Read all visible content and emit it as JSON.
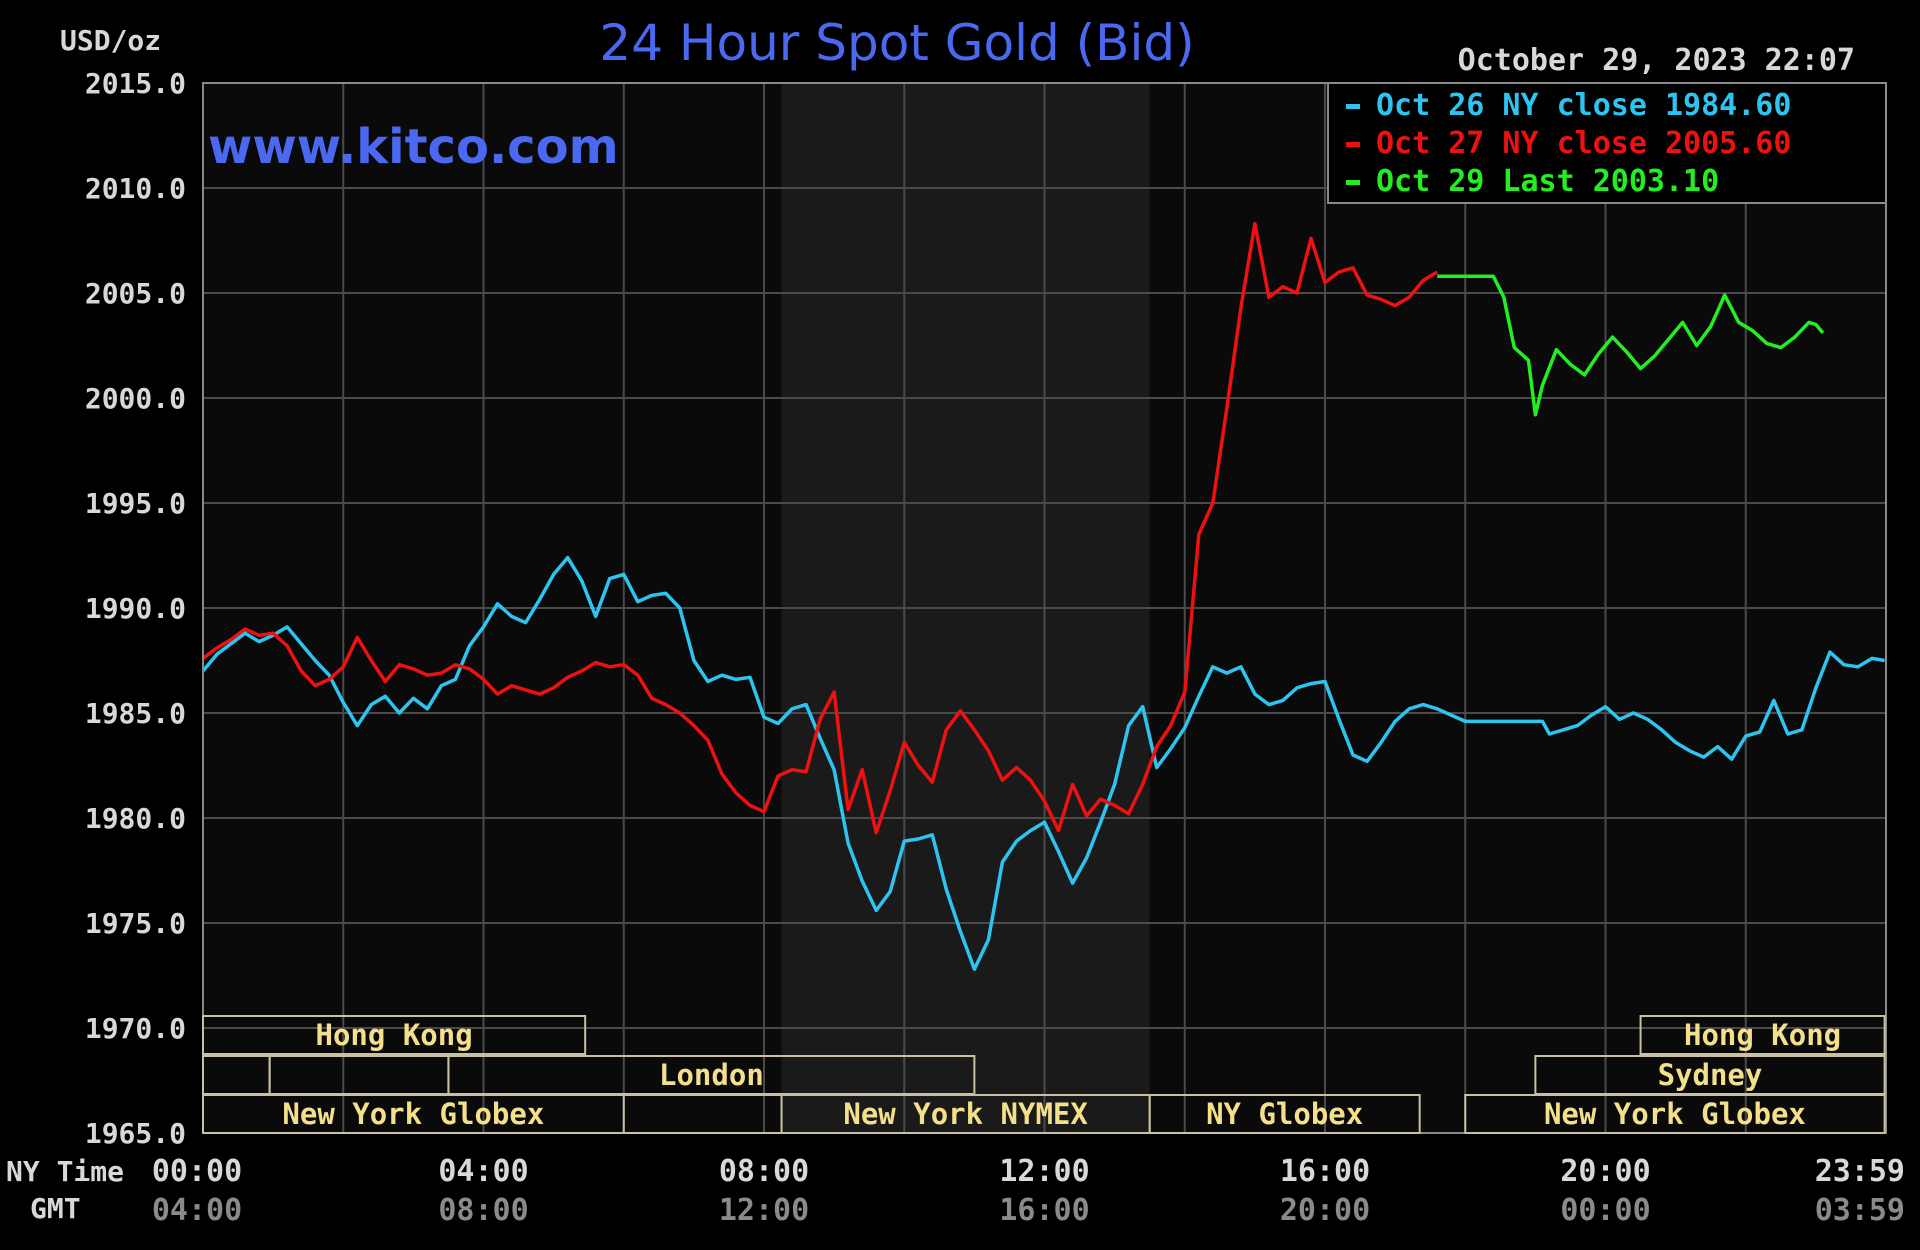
{
  "colors": {
    "background": "#000000",
    "plot_bg": "#0a0a0a",
    "grid": "#4a4a4a",
    "frame": "#8a8a8a",
    "shade": "#1a1a1a",
    "title": "#4a68f0",
    "axis_text": "#d8d8d8",
    "gmt_text": "#8a8a8a",
    "market_text": "#f4e08a",
    "market_border": "#c8c0a0",
    "oct26": "#2ec4f0",
    "oct27": "#ee1111",
    "oct29": "#22ee22"
  },
  "header": {
    "unit_label": "USD/oz",
    "title": "24 Hour Spot Gold (Bid)",
    "datetime": "October 29, 2023 22:07",
    "watermark": "www.kitco.com"
  },
  "legend": [
    {
      "text": "Oct 26 NY close 1984.60",
      "color": "#2ec4f0"
    },
    {
      "text": "Oct 27 NY close 2005.60",
      "color": "#ee1111"
    },
    {
      "text": "Oct 29 Last 2003.10",
      "color": "#22ee22"
    }
  ],
  "axis": {
    "ny_time_label": "NY Time",
    "gmt_label": "GMT",
    "x_ticks": [
      {
        "ny": "00:00",
        "gmt": "04:00",
        "h": 0
      },
      {
        "ny": "04:00",
        "gmt": "08:00",
        "h": 4
      },
      {
        "ny": "08:00",
        "gmt": "12:00",
        "h": 8
      },
      {
        "ny": "12:00",
        "gmt": "16:00",
        "h": 12
      },
      {
        "ny": "16:00",
        "gmt": "20:00",
        "h": 16
      },
      {
        "ny": "20:00",
        "gmt": "00:00",
        "h": 20
      },
      {
        "ny": "23:59",
        "gmt": "03:59",
        "h": 23.98
      }
    ],
    "y_ticks": [
      "2015.0",
      "2010.0",
      "2005.0",
      "2000.0",
      "1995.0",
      "1990.0",
      "1985.0",
      "1980.0",
      "1975.0",
      "1970.0",
      "1965.0"
    ]
  },
  "markets": [
    {
      "label": "Hong Kong",
      "row": 0,
      "start": 0,
      "end": 5.45
    },
    {
      "label": "",
      "row": 1,
      "start": 0,
      "end": 0.95
    },
    {
      "label": "",
      "row": 1,
      "start": 0.95,
      "end": 3.5
    },
    {
      "label": "London",
      "row": 1,
      "start": 3.5,
      "end": 11.0
    },
    {
      "label": "",
      "row": 2,
      "start": 0,
      "end": 8.25
    },
    {
      "label": "New York Globex",
      "row": 2,
      "start": 0,
      "end": 6.0
    },
    {
      "label": "New York NYMEX",
      "row": 2,
      "start": 8.25,
      "end": 13.5
    },
    {
      "label": "NY Globex",
      "row": 2,
      "start": 13.5,
      "end": 17.35
    },
    {
      "label": "Hong Kong",
      "row": 0,
      "start": 20.5,
      "end": 23.98
    },
    {
      "label": "Sydney",
      "row": 1,
      "start": 19.0,
      "end": 23.98
    },
    {
      "label": "New York Globex",
      "row": 2,
      "start": 18.0,
      "end": 23.98
    }
  ],
  "chart_data": {
    "type": "line",
    "title": "24 Hour Spot Gold (Bid)",
    "ylabel": "USD/oz",
    "xlabel": "NY Time",
    "xlim": [
      0,
      24
    ],
    "ylim": [
      1965,
      2015
    ],
    "grid": true,
    "legend_position": "top-right",
    "shaded_session_hours": [
      8.25,
      13.5
    ],
    "series": [
      {
        "name": "Oct 26 NY close 1984.60",
        "color": "#2ec4f0",
        "points": [
          [
            0,
            1987.0
          ],
          [
            0.2,
            1987.8
          ],
          [
            0.4,
            1988.3
          ],
          [
            0.6,
            1988.8
          ],
          [
            0.8,
            1988.4
          ],
          [
            1.0,
            1988.7
          ],
          [
            1.2,
            1989.1
          ],
          [
            1.4,
            1988.3
          ],
          [
            1.6,
            1987.5
          ],
          [
            1.8,
            1986.8
          ],
          [
            2.0,
            1985.5
          ],
          [
            2.2,
            1984.4
          ],
          [
            2.4,
            1985.4
          ],
          [
            2.6,
            1985.8
          ],
          [
            2.8,
            1985.0
          ],
          [
            3.0,
            1985.7
          ],
          [
            3.2,
            1985.2
          ],
          [
            3.4,
            1986.3
          ],
          [
            3.6,
            1986.6
          ],
          [
            3.8,
            1988.2
          ],
          [
            4.0,
            1989.1
          ],
          [
            4.2,
            1990.2
          ],
          [
            4.4,
            1989.6
          ],
          [
            4.6,
            1989.3
          ],
          [
            4.8,
            1990.4
          ],
          [
            5.0,
            1991.6
          ],
          [
            5.2,
            1992.4
          ],
          [
            5.4,
            1991.3
          ],
          [
            5.6,
            1989.6
          ],
          [
            5.8,
            1991.4
          ],
          [
            6.0,
            1991.6
          ],
          [
            6.2,
            1990.3
          ],
          [
            6.4,
            1990.6
          ],
          [
            6.6,
            1990.7
          ],
          [
            6.8,
            1990.0
          ],
          [
            7.0,
            1987.5
          ],
          [
            7.2,
            1986.5
          ],
          [
            7.4,
            1986.8
          ],
          [
            7.6,
            1986.6
          ],
          [
            7.8,
            1986.7
          ],
          [
            8.0,
            1984.8
          ],
          [
            8.2,
            1984.5
          ],
          [
            8.4,
            1985.2
          ],
          [
            8.6,
            1985.4
          ],
          [
            8.8,
            1983.8
          ],
          [
            9.0,
            1982.3
          ],
          [
            9.2,
            1978.8
          ],
          [
            9.4,
            1977.0
          ],
          [
            9.6,
            1975.6
          ],
          [
            9.8,
            1976.5
          ],
          [
            10.0,
            1978.9
          ],
          [
            10.2,
            1979.0
          ],
          [
            10.4,
            1979.2
          ],
          [
            10.6,
            1976.6
          ],
          [
            10.8,
            1974.6
          ],
          [
            11.0,
            1972.8
          ],
          [
            11.2,
            1974.2
          ],
          [
            11.4,
            1977.9
          ],
          [
            11.6,
            1978.9
          ],
          [
            11.8,
            1979.4
          ],
          [
            12.0,
            1979.8
          ],
          [
            12.2,
            1978.4
          ],
          [
            12.4,
            1976.9
          ],
          [
            12.6,
            1978.1
          ],
          [
            12.8,
            1979.8
          ],
          [
            13.0,
            1981.6
          ],
          [
            13.2,
            1984.4
          ],
          [
            13.4,
            1985.3
          ],
          [
            13.6,
            1982.4
          ],
          [
            13.8,
            1983.3
          ],
          [
            14.0,
            1984.3
          ],
          [
            14.2,
            1985.8
          ],
          [
            14.4,
            1987.2
          ],
          [
            14.6,
            1986.9
          ],
          [
            14.8,
            1987.2
          ],
          [
            15.0,
            1985.9
          ],
          [
            15.2,
            1985.4
          ],
          [
            15.4,
            1985.6
          ],
          [
            15.6,
            1986.2
          ],
          [
            15.8,
            1986.4
          ],
          [
            16.0,
            1986.5
          ],
          [
            16.2,
            1984.7
          ],
          [
            16.4,
            1983.0
          ],
          [
            16.6,
            1982.7
          ],
          [
            16.8,
            1983.6
          ],
          [
            17.0,
            1984.6
          ],
          [
            17.2,
            1985.2
          ],
          [
            17.4,
            1985.4
          ],
          [
            17.6,
            1985.2
          ],
          [
            17.8,
            1984.9
          ],
          [
            18.0,
            1984.6
          ],
          [
            18.4,
            1984.6
          ],
          [
            18.8,
            1984.6
          ],
          [
            19.0,
            1984.6
          ],
          [
            19.1,
            1984.6
          ],
          [
            19.2,
            1984.0
          ],
          [
            19.4,
            1984.2
          ],
          [
            19.6,
            1984.4
          ],
          [
            19.8,
            1984.9
          ],
          [
            20.0,
            1985.3
          ],
          [
            20.2,
            1984.7
          ],
          [
            20.4,
            1985.0
          ],
          [
            20.6,
            1984.7
          ],
          [
            20.8,
            1984.2
          ],
          [
            21.0,
            1983.6
          ],
          [
            21.2,
            1983.2
          ],
          [
            21.4,
            1982.9
          ],
          [
            21.6,
            1983.4
          ],
          [
            21.8,
            1982.8
          ],
          [
            22.0,
            1983.9
          ],
          [
            22.2,
            1984.1
          ],
          [
            22.4,
            1985.6
          ],
          [
            22.6,
            1984.0
          ],
          [
            22.8,
            1984.2
          ],
          [
            23.0,
            1986.2
          ],
          [
            23.2,
            1987.9
          ],
          [
            23.4,
            1987.3
          ],
          [
            23.6,
            1987.2
          ],
          [
            23.8,
            1987.6
          ],
          [
            23.98,
            1987.5
          ]
        ]
      },
      {
        "name": "Oct 27 NY close 2005.60",
        "color": "#ee1111",
        "points": [
          [
            0,
            1987.6
          ],
          [
            0.2,
            1988.1
          ],
          [
            0.4,
            1988.5
          ],
          [
            0.6,
            1989.0
          ],
          [
            0.8,
            1988.7
          ],
          [
            1.0,
            1988.8
          ],
          [
            1.2,
            1988.2
          ],
          [
            1.4,
            1987.0
          ],
          [
            1.6,
            1986.3
          ],
          [
            1.8,
            1986.6
          ],
          [
            2.0,
            1987.2
          ],
          [
            2.2,
            1988.6
          ],
          [
            2.4,
            1987.5
          ],
          [
            2.6,
            1986.5
          ],
          [
            2.8,
            1987.3
          ],
          [
            3.0,
            1987.1
          ],
          [
            3.2,
            1986.8
          ],
          [
            3.4,
            1986.9
          ],
          [
            3.6,
            1987.3
          ],
          [
            3.8,
            1987.1
          ],
          [
            4.0,
            1986.6
          ],
          [
            4.2,
            1985.9
          ],
          [
            4.4,
            1986.3
          ],
          [
            4.6,
            1986.1
          ],
          [
            4.8,
            1985.9
          ],
          [
            5.0,
            1986.2
          ],
          [
            5.2,
            1986.7
          ],
          [
            5.4,
            1987.0
          ],
          [
            5.6,
            1987.4
          ],
          [
            5.8,
            1987.2
          ],
          [
            6.0,
            1987.3
          ],
          [
            6.2,
            1986.8
          ],
          [
            6.4,
            1985.7
          ],
          [
            6.6,
            1985.4
          ],
          [
            6.8,
            1985.0
          ],
          [
            7.0,
            1984.4
          ],
          [
            7.2,
            1983.7
          ],
          [
            7.4,
            1982.1
          ],
          [
            7.6,
            1981.2
          ],
          [
            7.8,
            1980.6
          ],
          [
            8.0,
            1980.3
          ],
          [
            8.2,
            1982.0
          ],
          [
            8.4,
            1982.3
          ],
          [
            8.6,
            1982.2
          ],
          [
            8.8,
            1984.7
          ],
          [
            9.0,
            1986.0
          ],
          [
            9.2,
            1980.4
          ],
          [
            9.4,
            1982.3
          ],
          [
            9.6,
            1979.3
          ],
          [
            9.8,
            1981.3
          ],
          [
            10.0,
            1983.6
          ],
          [
            10.2,
            1982.5
          ],
          [
            10.4,
            1981.7
          ],
          [
            10.6,
            1984.2
          ],
          [
            10.8,
            1985.1
          ],
          [
            11.0,
            1984.2
          ],
          [
            11.2,
            1983.2
          ],
          [
            11.4,
            1981.8
          ],
          [
            11.6,
            1982.4
          ],
          [
            11.8,
            1981.8
          ],
          [
            12.0,
            1980.8
          ],
          [
            12.2,
            1979.4
          ],
          [
            12.4,
            1981.6
          ],
          [
            12.6,
            1980.1
          ],
          [
            12.8,
            1980.9
          ],
          [
            13.0,
            1980.6
          ],
          [
            13.2,
            1980.2
          ],
          [
            13.4,
            1981.6
          ],
          [
            13.6,
            1983.4
          ],
          [
            13.8,
            1984.4
          ],
          [
            14.0,
            1986.0
          ],
          [
            14.2,
            1993.5
          ],
          [
            14.4,
            1995.0
          ],
          [
            14.6,
            1999.5
          ],
          [
            14.8,
            2004.3
          ],
          [
            15.0,
            2008.3
          ],
          [
            15.2,
            2004.8
          ],
          [
            15.4,
            2005.3
          ],
          [
            15.6,
            2005.0
          ],
          [
            15.8,
            2007.6
          ],
          [
            16.0,
            2005.5
          ],
          [
            16.2,
            2006.0
          ],
          [
            16.4,
            2006.2
          ],
          [
            16.6,
            2004.9
          ],
          [
            16.8,
            2004.7
          ],
          [
            17.0,
            2004.4
          ],
          [
            17.2,
            2004.8
          ],
          [
            17.4,
            2005.6
          ],
          [
            17.6,
            2006.0
          ]
        ]
      },
      {
        "name": "Oct 29 Last 2003.10",
        "color": "#22ee22",
        "points": [
          [
            17.6,
            2005.8
          ],
          [
            18.0,
            2005.8
          ],
          [
            18.4,
            2005.8
          ],
          [
            18.55,
            2004.8
          ],
          [
            18.7,
            2002.4
          ],
          [
            18.9,
            2001.8
          ],
          [
            19.0,
            1999.2
          ],
          [
            19.1,
            2000.6
          ],
          [
            19.3,
            2002.3
          ],
          [
            19.5,
            2001.6
          ],
          [
            19.7,
            2001.1
          ],
          [
            19.9,
            2002.1
          ],
          [
            20.1,
            2002.9
          ],
          [
            20.3,
            2002.2
          ],
          [
            20.5,
            2001.4
          ],
          [
            20.7,
            2002.0
          ],
          [
            20.9,
            2002.8
          ],
          [
            21.1,
            2003.6
          ],
          [
            21.3,
            2002.5
          ],
          [
            21.5,
            2003.4
          ],
          [
            21.7,
            2004.9
          ],
          [
            21.9,
            2003.6
          ],
          [
            22.1,
            2003.2
          ],
          [
            22.3,
            2002.6
          ],
          [
            22.5,
            2002.4
          ],
          [
            22.7,
            2002.9
          ],
          [
            22.9,
            2003.6
          ],
          [
            23.0,
            2003.5
          ],
          [
            23.1,
            2003.1
          ]
        ]
      }
    ]
  }
}
